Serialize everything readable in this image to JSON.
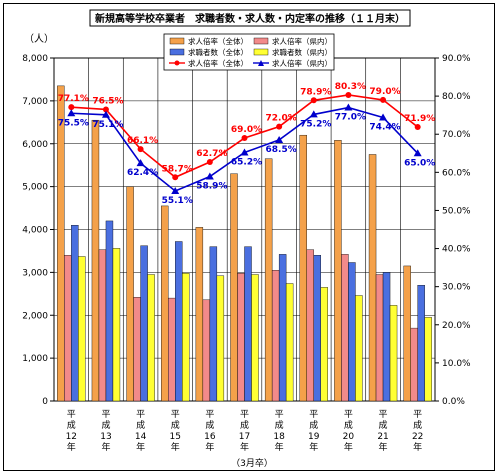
{
  "chart_data": {
    "type": "bar",
    "title": "新規高等学校卒業者　求職者数・求人数・内定率の推移（１１月末）",
    "y_left_unit": "（人）",
    "x_note": "（3月卒）",
    "categories": [
      [
        "平",
        "成",
        "12",
        "年"
      ],
      [
        "平",
        "成",
        "13",
        "年"
      ],
      [
        "平",
        "成",
        "14",
        "年"
      ],
      [
        "平",
        "成",
        "15",
        "年"
      ],
      [
        "平",
        "成",
        "16",
        "年"
      ],
      [
        "平",
        "成",
        "17",
        "年"
      ],
      [
        "平",
        "成",
        "18",
        "年"
      ],
      [
        "平",
        "成",
        "19",
        "年"
      ],
      [
        "平",
        "成",
        "20",
        "年"
      ],
      [
        "平",
        "成",
        "21",
        "年"
      ],
      [
        "平",
        "成",
        "22",
        "年"
      ]
    ],
    "y_left": {
      "min": 0,
      "max": 8000,
      "step": 1000,
      "ticks": [
        "0",
        "1,000",
        "2,000",
        "3,000",
        "4,000",
        "5,000",
        "6,000",
        "7,000",
        "8,000"
      ]
    },
    "y_right": {
      "min": 0,
      "max": 90,
      "step": 10,
      "ticks": [
        "0.0%",
        "10.0%",
        "20.0%",
        "30.0%",
        "40.0%",
        "50.0%",
        "60.0%",
        "70.0%",
        "80.0%",
        "90.0%"
      ]
    },
    "bar_series": [
      {
        "name": "求人倍率（全体）",
        "color": "#F4A14A",
        "values": [
          7350,
          6550,
          5000,
          4550,
          4050,
          5300,
          5650,
          6200,
          6080,
          5750,
          3150
        ]
      },
      {
        "name": "求人倍率（県内）",
        "color": "#F28A8A",
        "values": [
          3400,
          3530,
          2420,
          2400,
          2360,
          2980,
          3050,
          3530,
          3420,
          2950,
          1700
        ]
      },
      {
        "name": "求職者数（全体）",
        "color": "#4A6FE0",
        "values": [
          4100,
          4200,
          3620,
          3720,
          3600,
          3600,
          3420,
          3400,
          3230,
          3000,
          2700
        ]
      },
      {
        "name": "求職者数（県内）",
        "color": "#FFFF33",
        "values": [
          3370,
          3560,
          2950,
          2980,
          2920,
          2950,
          2740,
          2650,
          2460,
          2230,
          1950
        ]
      }
    ],
    "line_series": [
      {
        "name": "求人倍率（全体）",
        "color": "#FF0000",
        "marker": "circle",
        "values": [
          77.1,
          76.5,
          66.1,
          58.7,
          62.7,
          69.0,
          72.0,
          78.9,
          80.3,
          79.0,
          71.9
        ],
        "labels": [
          "77.1%",
          "76.5%",
          "66.1%",
          "58.7%",
          "62.7%",
          "69.0%",
          "72.0%",
          "78.9%",
          "80.3%",
          "79.0%",
          "71.9%"
        ]
      },
      {
        "name": "求人倍率（県内）",
        "color": "#0000CC",
        "marker": "triangle",
        "values": [
          75.5,
          75.1,
          62.4,
          55.1,
          58.9,
          65.2,
          68.5,
          75.2,
          77.0,
          74.4,
          65.0
        ],
        "labels": [
          "75.5%",
          "75.1%",
          "62.4%",
          "55.1%",
          "58.9%",
          "65.2%",
          "68.5%",
          "75.2%",
          "77.0%",
          "74.4%",
          "65.0%"
        ]
      }
    ],
    "legend": {
      "placement": "top-center",
      "columns": 2
    }
  }
}
